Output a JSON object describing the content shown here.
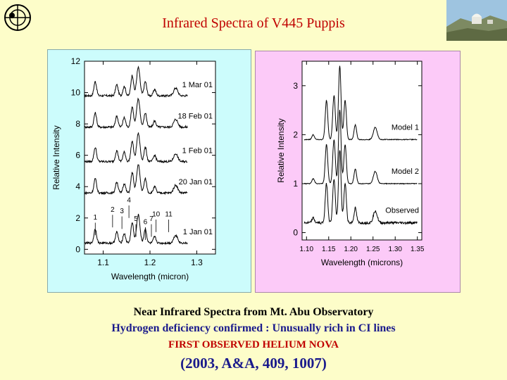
{
  "slide": {
    "title": "Infrared Spectra of V445  Puppis",
    "captions": {
      "line1": "Near Infrared Spectra from Mt. Abu Observatory",
      "line2": "Hydrogen deficiency confirmed :  Unusually rich in CI lines",
      "line3": "FIRST OBSERVED HELIUM NOVA",
      "line4": "(2003, A&A, 409, 1007)"
    },
    "colors": {
      "title": "#c00000",
      "background": "#fdfdc9",
      "left_panel": "#ccfcfc",
      "right_panel": "#fccaf8",
      "caption_blue": "#1a1a8c"
    }
  },
  "chart_data": [
    {
      "type": "line",
      "xlabel": "Wavelength  (micron)",
      "ylabel": "Relative Intensity",
      "xlim": [
        1.06,
        1.34
      ],
      "ylim": [
        -0.3,
        12
      ],
      "x_ticks": [
        "1.1",
        "1.2",
        "1.3"
      ],
      "x_tick_values": [
        1.1,
        1.2,
        1.3
      ],
      "y_ticks": [
        "0",
        "2",
        "4",
        "6",
        "8",
        "10",
        "12"
      ],
      "y_tick_values": [
        0,
        2,
        4,
        6,
        8,
        10,
        12
      ],
      "series": [
        {
          "name": "1 Mar 01",
          "offset": 9.8
        },
        {
          "name": "18 Feb 01",
          "offset": 7.8
        },
        {
          "name": "1 Feb 01",
          "offset": 5.6
        },
        {
          "name": "20 Jan 01",
          "offset": 3.6
        },
        {
          "name": "1 Jan 01",
          "offset": 0.4
        }
      ],
      "peaks": [
        {
          "x": 1.083,
          "h": 0.9,
          "w": 0.004
        },
        {
          "x": 1.129,
          "h": 0.7,
          "w": 0.004
        },
        {
          "x": 1.145,
          "h": 0.6,
          "w": 0.004
        },
        {
          "x": 1.162,
          "h": 1.3,
          "w": 0.004
        },
        {
          "x": 1.175,
          "h": 1.8,
          "w": 0.005
        },
        {
          "x": 1.19,
          "h": 0.9,
          "w": 0.004
        },
        {
          "x": 1.21,
          "h": 0.4,
          "w": 0.004
        },
        {
          "x": 1.255,
          "h": 0.5,
          "w": 0.006
        }
      ],
      "line_ids": [
        {
          "label": "1",
          "x": 1.083,
          "y": 1.9
        },
        {
          "label": "2",
          "x": 1.12,
          "y": 2.4
        },
        {
          "label": "3",
          "x": 1.14,
          "y": 2.3
        },
        {
          "label": "4",
          "x": 1.155,
          "y": 3.0
        },
        {
          "label": "5",
          "x": 1.17,
          "y": 1.8
        },
        {
          "label": "6",
          "x": 1.19,
          "y": 1.6
        },
        {
          "label": "7",
          "x": 1.203,
          "y": 1.8
        },
        {
          "label": "10",
          "x": 1.213,
          "y": 2.1
        },
        {
          "label": "11",
          "x": 1.24,
          "y": 2.1
        }
      ]
    },
    {
      "type": "line",
      "xlabel": "Wavelength (microns)",
      "ylabel": "Relative Intensity",
      "xlim": [
        1.09,
        1.36
      ],
      "ylim": [
        -0.15,
        3.5
      ],
      "x_ticks": [
        "1.10",
        "1.15",
        "1.20",
        "1.25",
        "1.30",
        "1.35"
      ],
      "x_tick_values": [
        1.1,
        1.15,
        1.2,
        1.25,
        1.3,
        1.35
      ],
      "y_ticks": [
        "0",
        "1",
        "2",
        "3"
      ],
      "y_tick_values": [
        0,
        1,
        2,
        3
      ],
      "series": [
        {
          "name": "Model 1",
          "offset": 1.9
        },
        {
          "name": "Model 2",
          "offset": 1.0
        },
        {
          "name": "Observed",
          "offset": 0.2
        }
      ],
      "peaks": [
        {
          "x": 1.115,
          "h": 0.1,
          "w": 0.004
        },
        {
          "x": 1.145,
          "h": 0.8,
          "w": 0.004
        },
        {
          "x": 1.162,
          "h": 0.9,
          "w": 0.004
        },
        {
          "x": 1.175,
          "h": 1.5,
          "w": 0.004
        },
        {
          "x": 1.187,
          "h": 0.8,
          "w": 0.004
        },
        {
          "x": 1.21,
          "h": 0.3,
          "w": 0.004
        },
        {
          "x": 1.255,
          "h": 0.25,
          "w": 0.006
        }
      ]
    }
  ]
}
